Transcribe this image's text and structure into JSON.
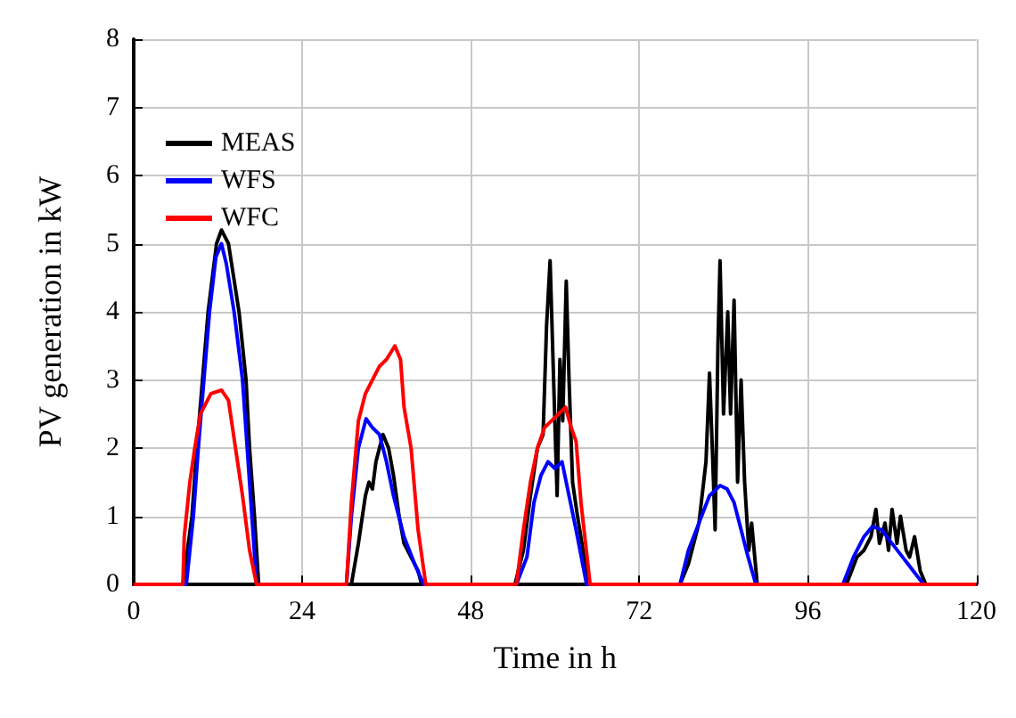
{
  "chart_data": {
    "type": "line",
    "xlabel": "Time in h",
    "ylabel": "PV generation in kW",
    "xlim": [
      0,
      120
    ],
    "ylim": [
      0,
      8
    ],
    "xticks": [
      0,
      24,
      48,
      72,
      96,
      120
    ],
    "yticks": [
      0,
      1,
      2,
      3,
      4,
      5,
      6,
      7,
      8
    ],
    "grid": true,
    "legend": "top left",
    "marker": "none",
    "line_style": "solid",
    "series": [
      {
        "name": "MEAS",
        "color": "#000000",
        "x": [
          0,
          7,
          8.3,
          9,
          9.8,
          10.6,
          11.8,
          12.5,
          13.5,
          15,
          16,
          16.5,
          17.2,
          17.8,
          31,
          32,
          33,
          33.5,
          34,
          34.5,
          35.5,
          36.3,
          37,
          37.8,
          38.5,
          39.5,
          40.5,
          41,
          54.3,
          55.5,
          56.5,
          57.5,
          58.3,
          58.8,
          59.3,
          59.8,
          60.3,
          60.7,
          61.1,
          61.6,
          62,
          62.5,
          63.2,
          64,
          64.8,
          77.8,
          79,
          80.5,
          81.5,
          82,
          82.4,
          82.8,
          83.2,
          83.5,
          84,
          84.6,
          85,
          85.5,
          86,
          86.5,
          87,
          87.6,
          88,
          88.8,
          101.5,
          103,
          104,
          105,
          105.7,
          106.2,
          107,
          107.5,
          108,
          108.7,
          109.2,
          110,
          110.5,
          111.2,
          112,
          112.8,
          120
        ],
        "values": [
          0,
          0,
          1,
          2,
          3,
          4,
          5,
          5.2,
          5,
          4,
          3,
          2,
          1,
          0,
          0,
          0.6,
          1.3,
          1.5,
          1.4,
          1.8,
          2.2,
          2.0,
          1.6,
          1.0,
          0.6,
          0.4,
          0.2,
          0,
          0,
          0.5,
          1.3,
          2.0,
          2.2,
          3.8,
          4.75,
          3.0,
          1.3,
          3.3,
          2.4,
          4.45,
          3.0,
          1.5,
          1.0,
          0.5,
          0,
          0,
          0.3,
          0.9,
          1.8,
          3.1,
          2.0,
          0.8,
          3.5,
          4.75,
          2.5,
          4.0,
          2.5,
          4.17,
          1.5,
          3.0,
          1.5,
          0.5,
          0.9,
          0,
          0,
          0.4,
          0.5,
          0.7,
          1.1,
          0.6,
          0.9,
          0.5,
          1.1,
          0.6,
          1.0,
          0.5,
          0.4,
          0.7,
          0.2,
          0,
          0
        ]
      },
      {
        "name": "WFS",
        "color": "#0000ff",
        "x": [
          0,
          7.5,
          8.5,
          9.2,
          10,
          10.8,
          11.7,
          12.5,
          13.2,
          14.3,
          15.5,
          16.5,
          17.5,
          30.3,
          31,
          32,
          33.1,
          34,
          35,
          36,
          37,
          38.5,
          40,
          41.3,
          54.5,
          56,
          57,
          58,
          59,
          60,
          61,
          62,
          63,
          64.5,
          77.8,
          79,
          80.5,
          82,
          83.5,
          84.5,
          85.5,
          86.5,
          87.5,
          88.6,
          101,
          102.5,
          104,
          105.2,
          106.5,
          108,
          109.5,
          111,
          112.5,
          120
        ],
        "values": [
          0,
          0,
          1,
          2,
          3,
          4,
          4.8,
          5,
          4.7,
          4,
          3,
          1.5,
          0,
          0,
          1.0,
          2.0,
          2.43,
          2.3,
          2.2,
          1.8,
          1.3,
          0.7,
          0.3,
          0,
          0,
          0.4,
          1.2,
          1.6,
          1.8,
          1.7,
          1.8,
          1.3,
          0.8,
          0,
          0,
          0.5,
          0.9,
          1.3,
          1.45,
          1.4,
          1.2,
          0.8,
          0.4,
          0,
          0,
          0.4,
          0.7,
          0.85,
          0.8,
          0.6,
          0.4,
          0.2,
          0,
          0
        ]
      },
      {
        "name": "WFC",
        "color": "#ff0000",
        "x": [
          0,
          7,
          7.2,
          8,
          8.7,
          9.5,
          11,
          12.5,
          13.5,
          14.5,
          15.5,
          16.5,
          17.5,
          30.3,
          31,
          32,
          33,
          34,
          35,
          36,
          37.2,
          38,
          38.5,
          39.5,
          40.5,
          41.6,
          54.5,
          55.5,
          56.5,
          57.5,
          58.5,
          59.5,
          60.5,
          61.5,
          62.3,
          63,
          63.7,
          65,
          120
        ],
        "values": [
          0,
          0,
          0.7,
          1.5,
          2,
          2.5,
          2.8,
          2.85,
          2.7,
          2,
          1.3,
          0.5,
          0,
          0,
          1.2,
          2.4,
          2.8,
          3.0,
          3.2,
          3.3,
          3.5,
          3.3,
          2.6,
          2.0,
          0.8,
          0,
          0,
          0.8,
          1.5,
          2.0,
          2.3,
          2.4,
          2.5,
          2.6,
          2.3,
          2.1,
          1.2,
          0,
          0
        ]
      }
    ]
  }
}
